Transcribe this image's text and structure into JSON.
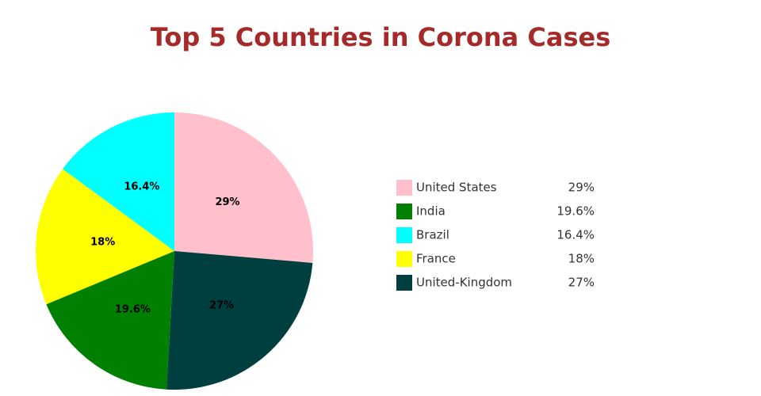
{
  "chart_data": {
    "type": "pie",
    "title": "Top 5 Countries in Corona Cases",
    "categories": [
      "United States",
      "India",
      "Brazil",
      "France",
      "United-Kingdom"
    ],
    "values": [
      29,
      19.6,
      16.4,
      18,
      27
    ],
    "value_labels": [
      "29%",
      "19.6%",
      "16.4%",
      "18%",
      "27%"
    ],
    "colors": [
      "#ffc0cb",
      "#008000",
      "#00ffff",
      "#ffff00",
      "#003f3f"
    ],
    "slice_order": [
      "United States",
      "United-Kingdom",
      "India",
      "France",
      "Brazil"
    ],
    "legend_position": "right"
  }
}
